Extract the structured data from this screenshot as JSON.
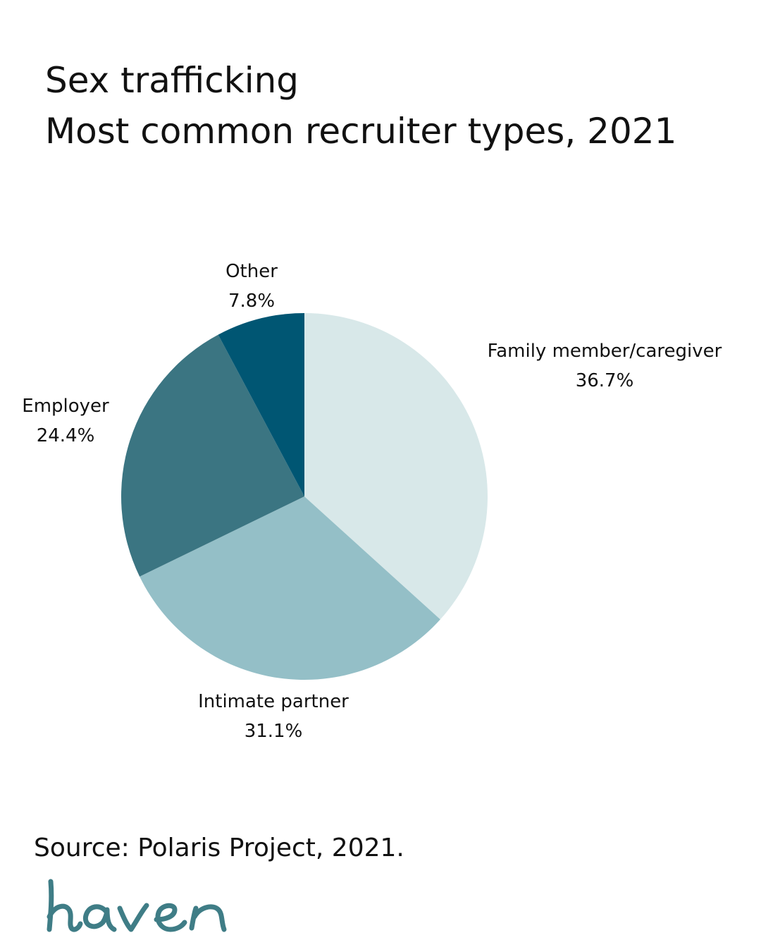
{
  "title": {
    "line1": "Sex trafficking",
    "line2": "Most common recruiter types, 2021"
  },
  "chart_data": {
    "type": "pie",
    "title": "Sex trafficking — Most common recruiter types, 2021",
    "unit": "%",
    "slices": [
      {
        "label": "Family member/caregiver",
        "value": 36.7,
        "display": "36.7%",
        "color": "#d8e8e9"
      },
      {
        "label": "Intimate partner",
        "value": 31.1,
        "display": "31.1%",
        "color": "#94bfc7"
      },
      {
        "label": "Employer",
        "value": 24.4,
        "display": "24.4%",
        "color": "#3b7582"
      },
      {
        "label": "Other",
        "value": 7.8,
        "display": "7.8%",
        "color": "#005673"
      }
    ]
  },
  "source": "Source: Polaris Project, 2021.",
  "logo": {
    "text": "haven",
    "color": "#3f7d86"
  }
}
